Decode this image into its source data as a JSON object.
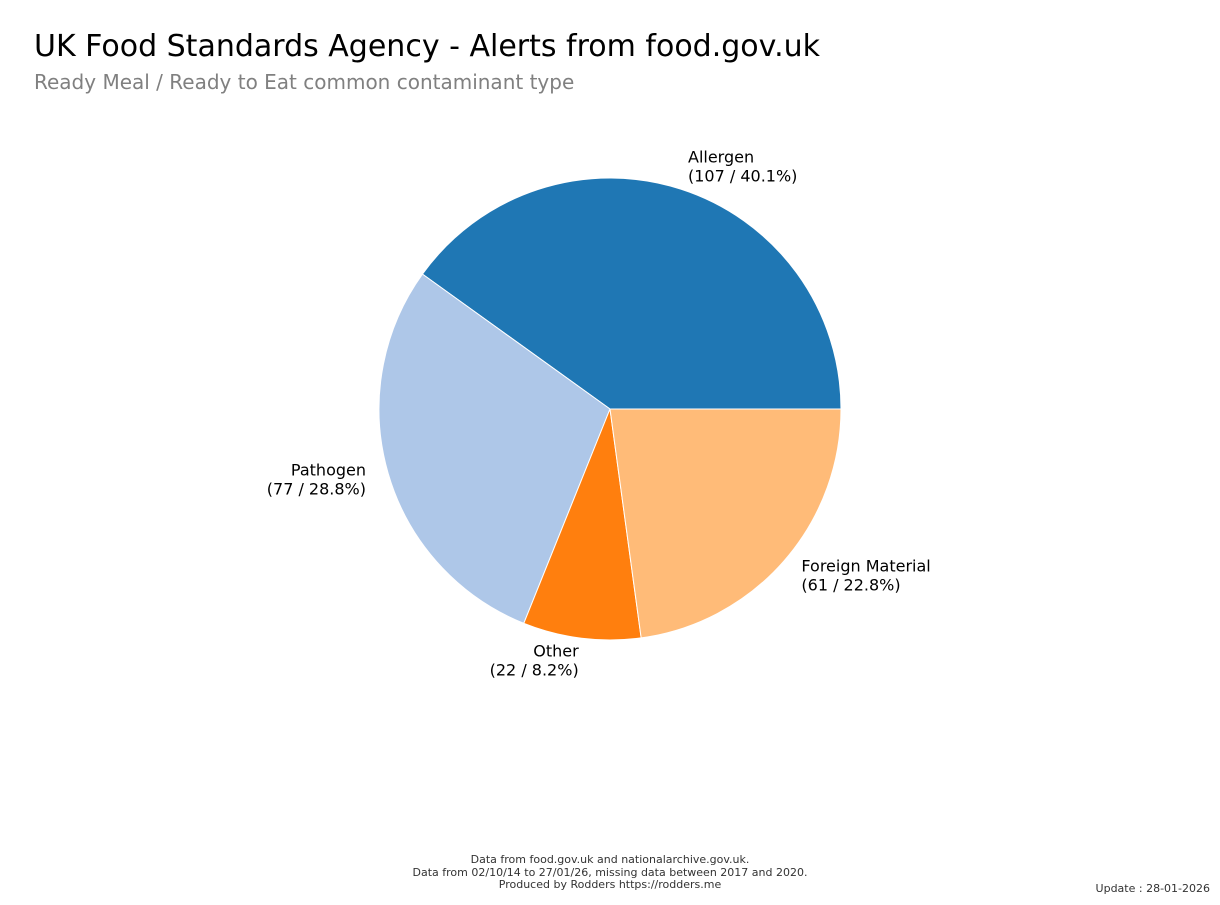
{
  "header": {
    "title": "UK Food Standards Agency - Alerts from food.gov.uk",
    "subtitle": "Ready Meal / Ready to Eat common contaminant type"
  },
  "chart_data": {
    "type": "pie",
    "title": "UK Food Standards Agency - Alerts from food.gov.uk",
    "subtitle": "Ready Meal / Ready to Eat common contaminant type",
    "start_angle_deg": 0,
    "direction": "counterclockwise",
    "slices": [
      {
        "label": "Allergen",
        "value": 107,
        "percent": 40.1,
        "label_text": "(107 / 40.1%)",
        "color": "#1f77b4"
      },
      {
        "label": "Pathogen",
        "value": 77,
        "percent": 28.8,
        "label_text": "(77 / 28.8%)",
        "color": "#aec7e8"
      },
      {
        "label": "Other",
        "value": 22,
        "percent": 8.2,
        "label_text": "(22 / 8.2%)",
        "color": "#ff7f0e"
      },
      {
        "label": "Foreign Material",
        "value": 61,
        "percent": 22.8,
        "label_text": "(61 / 22.8%)",
        "color": "#ffbb78"
      }
    ]
  },
  "footer": {
    "line1": "Data from food.gov.uk and nationalarchive.gov.uk.",
    "line2": "Data from 02/10/14 to 27/01/26, missing data between 2017 and 2020.",
    "line3": "Produced by Rodders https://rodders.me",
    "update": "Update : 28-01-2026"
  }
}
